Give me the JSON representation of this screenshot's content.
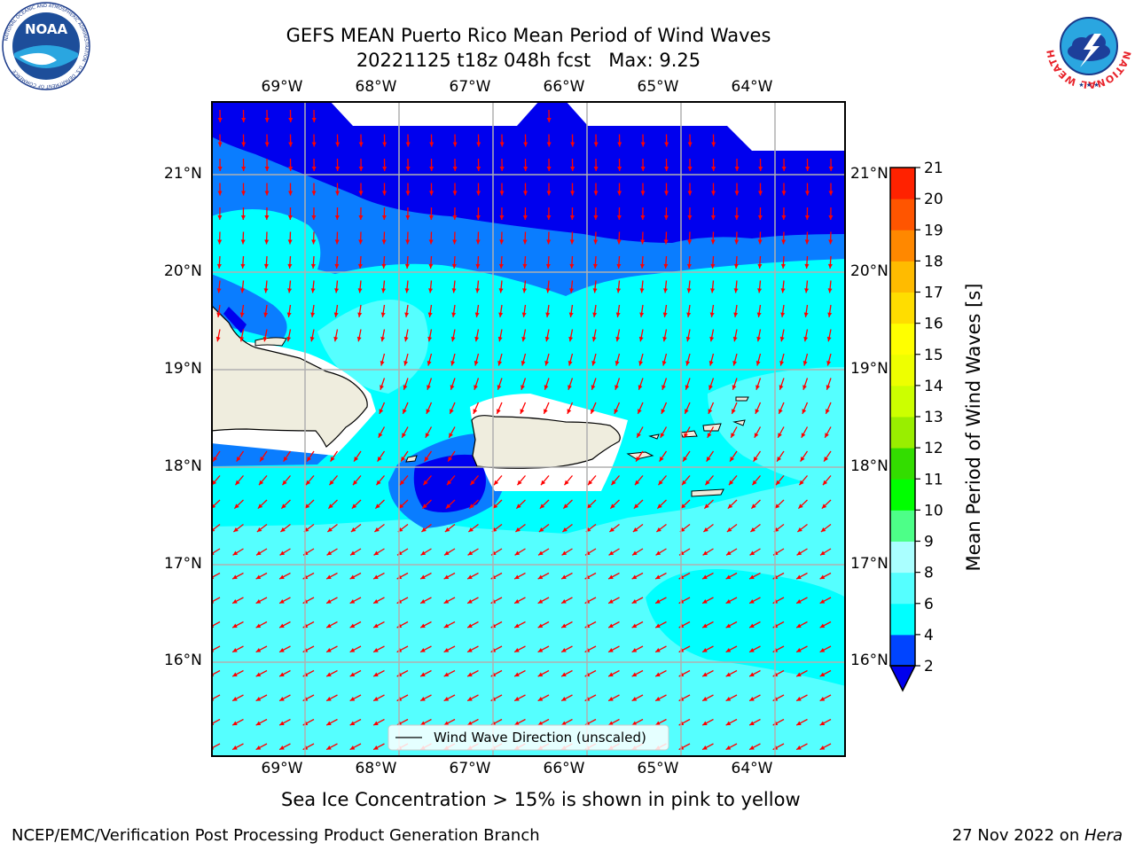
{
  "title": {
    "line1": "GEFS MEAN Puerto Rico Mean Period of Wind Waves",
    "line2": "20221125 t18z 048h fcst   Max: 9.25"
  },
  "logos": {
    "left": "noaa-logo",
    "right": "nws-logo",
    "noaa_text": "NOAA",
    "noaa_ring": "NATIONAL OCEANIC AND ATMOSPHERIC ADMINISTRATION · U.S. DEPARTMENT OF COMMERCE",
    "nws_ring": "NATIONAL WEATHER SERVICE"
  },
  "map": {
    "lon_labels": [
      "69°W",
      "68°W",
      "67°W",
      "66°W",
      "65°W",
      "64°W"
    ],
    "lat_labels": [
      "21°N",
      "20°N",
      "19°N",
      "18°N",
      "17°N",
      "16°N"
    ],
    "legend_label": "Wind Wave Direction (unscaled)",
    "arrow_color": "#ff0000",
    "land_color": "#efedde"
  },
  "colorbar": {
    "label": "Mean Period of Wind Waves [s]",
    "ticks": [
      "2",
      "4",
      "6",
      "8",
      "9",
      "10",
      "11",
      "12",
      "13",
      "14",
      "15",
      "16",
      "17",
      "18",
      "19",
      "20",
      "21"
    ],
    "colors": [
      "#0044ff",
      "#00ffff",
      "#55ffff",
      "#aaffff",
      "#4dff88",
      "#00ff00",
      "#33dd00",
      "#99ee00",
      "#ccff00",
      "#eeff00",
      "#ffff00",
      "#ffdd00",
      "#ffbb00",
      "#ff8800",
      "#ff5500",
      "#ff2200"
    ],
    "extend_color": "#0000ee"
  },
  "caption": "Sea Ice Concentration > 15% is shown in pink to yellow",
  "footer": {
    "left": "NCEP/EMC/Verification Post Processing Product Generation Branch",
    "right_prefix": "27 Nov 2022 on ",
    "right_host": "Hera"
  }
}
